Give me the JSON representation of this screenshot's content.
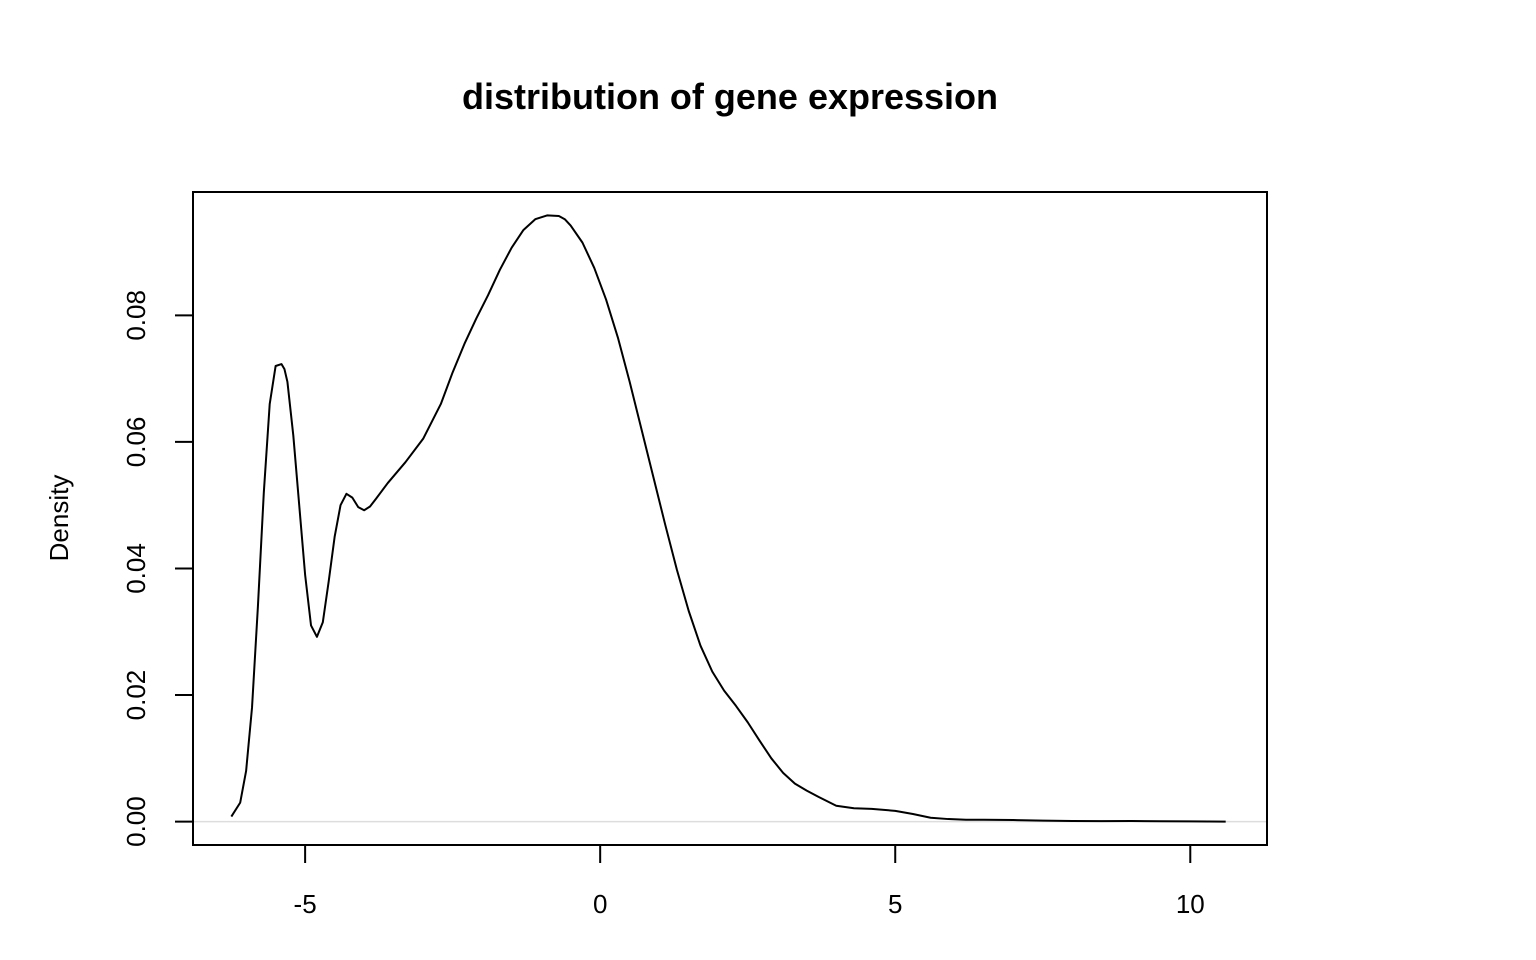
{
  "chart_data": {
    "type": "line",
    "title": "distribution of gene expression",
    "xlabel": "",
    "ylabel": "Density",
    "xlim": [
      -6.9,
      11.3
    ],
    "ylim": [
      -0.0037,
      0.0995
    ],
    "x_ticks": [
      {
        "value": -5,
        "label": "-5"
      },
      {
        "value": 0,
        "label": "0"
      },
      {
        "value": 5,
        "label": "5"
      },
      {
        "value": 10,
        "label": "10"
      }
    ],
    "y_ticks": [
      {
        "value": 0.0,
        "label": "0.00"
      },
      {
        "value": 0.02,
        "label": "0.02"
      },
      {
        "value": 0.04,
        "label": "0.04"
      },
      {
        "value": 0.06,
        "label": "0.06"
      },
      {
        "value": 0.08,
        "label": "0.08"
      }
    ],
    "baseline": 0,
    "colors": {
      "line": "#000000",
      "baseline": "#dddddd"
    },
    "series": [
      {
        "x": [
          -6.25,
          -6.1,
          -6.0,
          -5.9,
          -5.8,
          -5.7,
          -5.6,
          -5.5,
          -5.4,
          -5.35,
          -5.3,
          -5.2,
          -5.1,
          -5.0,
          -4.9,
          -4.8,
          -4.7,
          -4.6,
          -4.5,
          -4.4,
          -4.3,
          -4.2,
          -4.1,
          -4.0,
          -3.9,
          -3.8,
          -3.6,
          -3.3,
          -3.0,
          -2.7,
          -2.5,
          -2.3,
          -2.1,
          -1.9,
          -1.7,
          -1.5,
          -1.3,
          -1.1,
          -0.9,
          -0.7,
          -0.6,
          -0.5,
          -0.3,
          -0.1,
          0.1,
          0.3,
          0.5,
          0.7,
          0.9,
          1.1,
          1.3,
          1.5,
          1.7,
          1.9,
          2.1,
          2.3,
          2.5,
          2.7,
          2.9,
          3.1,
          3.3,
          3.5,
          3.7,
          4.0,
          4.3,
          4.6,
          5.0,
          5.3,
          5.6,
          5.9,
          6.2,
          6.5,
          7.0,
          7.5,
          8.0,
          8.5,
          9.0,
          9.5,
          10.0,
          10.6
        ],
        "y": [
          0.0008,
          0.003,
          0.008,
          0.018,
          0.034,
          0.052,
          0.066,
          0.072,
          0.0723,
          0.0715,
          0.0695,
          0.061,
          0.05,
          0.039,
          0.031,
          0.0292,
          0.0315,
          0.038,
          0.045,
          0.05,
          0.0518,
          0.0512,
          0.0497,
          0.0492,
          0.0498,
          0.051,
          0.0535,
          0.0568,
          0.0605,
          0.066,
          0.071,
          0.0755,
          0.0795,
          0.0832,
          0.0872,
          0.0907,
          0.0935,
          0.0952,
          0.0958,
          0.0957,
          0.0952,
          0.0942,
          0.0915,
          0.0875,
          0.0825,
          0.0765,
          0.0695,
          0.062,
          0.0545,
          0.047,
          0.0398,
          0.0333,
          0.0278,
          0.0237,
          0.0207,
          0.0183,
          0.0157,
          0.0128,
          0.01,
          0.0077,
          0.006,
          0.0049,
          0.0039,
          0.0025,
          0.0021,
          0.002,
          0.0017,
          0.0012,
          0.0006,
          0.0004,
          0.0003,
          0.0003,
          0.00025,
          0.00015,
          0.0001,
          8e-05,
          0.0001,
          5e-05,
          3e-05,
          0.0
        ]
      }
    ]
  }
}
